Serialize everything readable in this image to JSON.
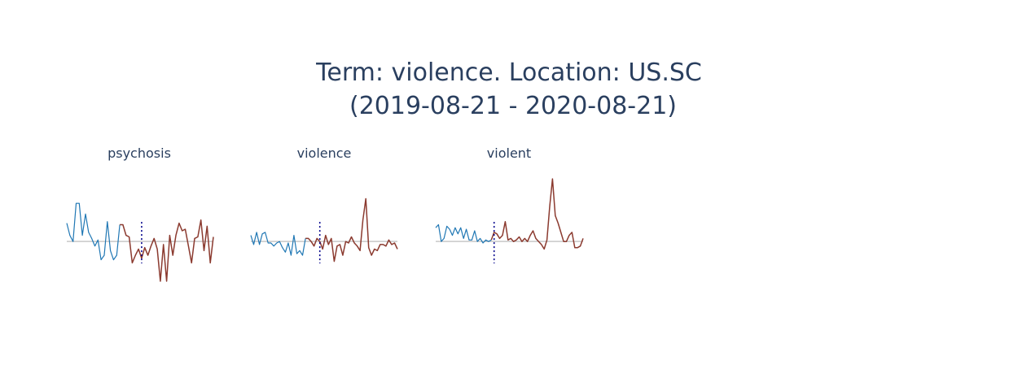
{
  "chart_data": {
    "type": "line",
    "title_lines": [
      "Term: violence. Location: US.SC",
      "(2019-08-21 - 2020-08-21)"
    ],
    "colors": {
      "before": "#1f77b4",
      "after": "#8b3a2f",
      "baseline": "#c8c8c8",
      "event_marker": "#00008b",
      "title": "#2a3f5f"
    },
    "baseline_y": 0,
    "y_range": [
      -2.6,
      4.0
    ],
    "panels": [
      {
        "title": "psychosis",
        "event_index": 24,
        "before": [
          1.2,
          0.4,
          0.0,
          2.5,
          2.5,
          0.4,
          1.8,
          0.6,
          0.2,
          -0.3,
          0.1,
          -1.2,
          -0.9,
          1.3,
          -0.6,
          -1.2,
          -0.9,
          1.1
        ],
        "after": [
          1.1,
          0.4,
          0.3,
          -1.4,
          -0.9,
          -0.5,
          -1.1,
          -0.4,
          -0.9,
          -0.3,
          0.2,
          -0.5,
          -2.6,
          -0.2,
          -2.6,
          0.4,
          -0.9,
          0.4,
          1.2,
          0.7,
          0.8,
          -0.3,
          -1.4,
          0.2,
          0.3,
          1.4,
          -0.6,
          1.0,
          -1.4,
          0.3
        ]
      },
      {
        "title": "violence",
        "event_index": 24,
        "before": [
          0.4,
          -0.2,
          0.6,
          -0.2,
          0.5,
          0.6,
          -0.1,
          -0.1,
          -0.3,
          -0.1,
          0.0,
          -0.4,
          -0.7,
          -0.1,
          -0.9,
          0.4,
          -0.8,
          -0.6,
          -0.9,
          0.2
        ],
        "after": [
          0.2,
          0.0,
          -0.3,
          0.2,
          0.0,
          -0.5,
          0.4,
          -0.2,
          0.2,
          -1.3,
          -0.3,
          -0.2,
          -0.9,
          0.0,
          -0.1,
          0.3,
          -0.1,
          -0.3,
          -0.6,
          1.4,
          2.8,
          -0.4,
          -0.9,
          -0.5,
          -0.6,
          -0.2,
          -0.2,
          -0.3,
          0.1,
          -0.2,
          -0.1,
          -0.5
        ]
      },
      {
        "title": "violent",
        "event_index": 21,
        "before": [
          0.9,
          1.1,
          0.0,
          0.2,
          1.0,
          0.8,
          0.4,
          0.9,
          0.5,
          0.9,
          0.2,
          0.8,
          0.1,
          0.1,
          0.7,
          0.0,
          0.2,
          -0.1,
          0.1,
          0.0,
          0.1
        ],
        "after": [
          0.6,
          0.5,
          0.2,
          0.4,
          1.3,
          0.1,
          0.2,
          0.0,
          0.1,
          0.3,
          0.0,
          0.2,
          0.0,
          0.4,
          0.7,
          0.2,
          0.0,
          -0.2,
          -0.5,
          0.1,
          2.3,
          4.1,
          1.7,
          1.2,
          0.6,
          0.0,
          0.0,
          0.4,
          0.6,
          -0.4,
          -0.4,
          -0.3,
          0.2
        ]
      }
    ]
  }
}
